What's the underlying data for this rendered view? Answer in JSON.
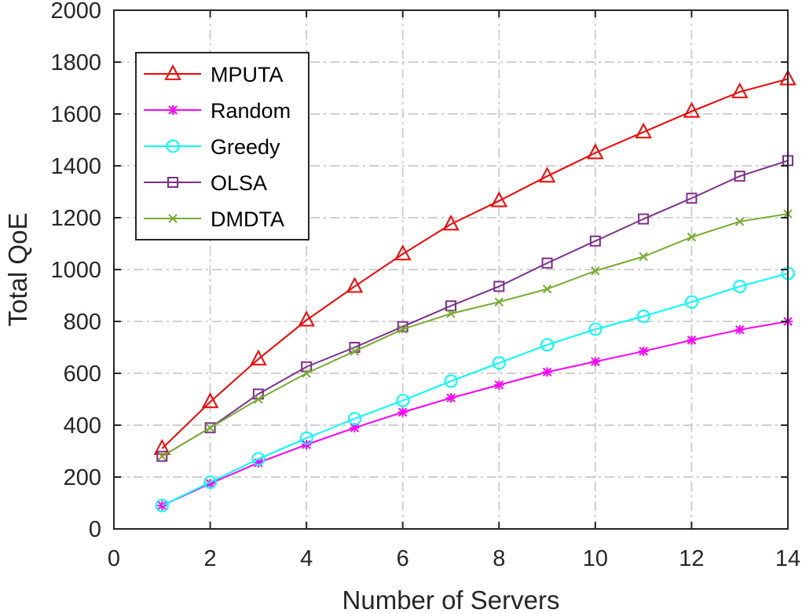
{
  "chart_data": {
    "type": "line",
    "xlabel": "Number of Servers",
    "ylabel": "Total QoE",
    "xlim": [
      0,
      14
    ],
    "ylim": [
      0,
      2000
    ],
    "xticks": [
      0,
      2,
      4,
      6,
      8,
      10,
      12,
      14
    ],
    "yticks": [
      0,
      200,
      400,
      600,
      800,
      1000,
      1200,
      1400,
      1600,
      1800,
      2000
    ],
    "grid": true,
    "legend_position": "top-left",
    "x": [
      1,
      2,
      3,
      4,
      5,
      6,
      7,
      8,
      9,
      10,
      11,
      12,
      13,
      14
    ],
    "series": [
      {
        "name": "MPUTA",
        "color": "#ff0000",
        "marker": "triangle",
        "values": [
          310,
          490,
          655,
          805,
          935,
          1060,
          1175,
          1265,
          1360,
          1450,
          1530,
          1610,
          1685,
          1735
        ]
      },
      {
        "name": "Random",
        "color": "#ff00ff",
        "marker": "star",
        "values": [
          90,
          175,
          255,
          325,
          390,
          450,
          505,
          555,
          605,
          645,
          685,
          728,
          768,
          800
        ]
      },
      {
        "name": "Greedy",
        "color": "#00ffff",
        "marker": "circle",
        "values": [
          90,
          180,
          270,
          350,
          425,
          495,
          570,
          640,
          710,
          770,
          820,
          875,
          935,
          985
        ]
      },
      {
        "name": "OLSA",
        "color": "#7e2f8e",
        "marker": "square",
        "values": [
          280,
          390,
          520,
          625,
          700,
          780,
          860,
          935,
          1025,
          1110,
          1195,
          1275,
          1360,
          1420
        ]
      },
      {
        "name": "DMDTA",
        "color": "#77ac30",
        "marker": "x",
        "values": [
          280,
          390,
          500,
          600,
          685,
          770,
          830,
          875,
          925,
          995,
          1050,
          1125,
          1185,
          1215
        ]
      }
    ]
  }
}
